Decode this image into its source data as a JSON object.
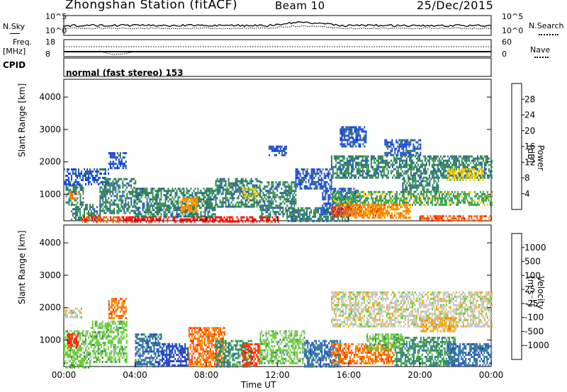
{
  "header": {
    "station": "Zhongshan Station (fitACF)",
    "beam": "Beam 10",
    "date": "25/Dec/2015"
  },
  "ops": {
    "nsky_label": "N.Sky",
    "nsky_ticks": [
      "10^5",
      "10^0"
    ],
    "nsearch_label": "N.Search",
    "nsearch_ticks": [
      "10^5",
      "10^0"
    ],
    "freq_label": "Freq.",
    "freq_unit": "[MHz]",
    "freq_ticks": [
      "18",
      "8"
    ],
    "nave_label": "Nave",
    "nave_ticks": [
      "60",
      "0"
    ],
    "cpid_label": "CPID",
    "cpid_value": "normal (fast stereo) 153"
  },
  "chart_data": [
    {
      "type": "heatmap",
      "name": "power",
      "ylabel": "Slant Range [km]",
      "yticks": [
        "1000",
        "2000",
        "3000",
        "4000"
      ],
      "ylim": [
        180,
        4550
      ],
      "colorbar_label": "Power [dB]",
      "colorbar_ticks": [
        "28",
        "24",
        "20",
        "16",
        "12",
        "8",
        "4"
      ],
      "colorbar_colors": [
        "#ff0000",
        "#ff5500",
        "#ff8c00",
        "#ffcc00",
        "#3aa64a",
        "#2e7d5a",
        "#2050c8",
        "#0030ff"
      ],
      "cells": [
        {
          "t0": 0.1,
          "t1": 1.1,
          "r0": 700,
          "r1": 1300,
          "level": 5
        },
        {
          "t0": 0.3,
          "t1": 0.9,
          "r0": 850,
          "r1": 1100,
          "level": 2
        },
        {
          "t0": 0.0,
          "t1": 2.5,
          "r0": 1300,
          "r1": 1800,
          "level": 6
        },
        {
          "t0": 0.4,
          "t1": 2.0,
          "r0": 180,
          "r1": 700,
          "level": 5
        },
        {
          "t0": 2.0,
          "t1": 4.0,
          "r0": 400,
          "r1": 1500,
          "level": 5
        },
        {
          "t0": 2.5,
          "t1": 3.5,
          "r0": 1800,
          "r1": 2300,
          "level": 6
        },
        {
          "t0": 1.0,
          "t1": 3.0,
          "r0": 180,
          "r1": 320,
          "level": 1
        },
        {
          "t0": 3.0,
          "t1": 12.0,
          "r0": 180,
          "r1": 320,
          "level": 0
        },
        {
          "t0": 4.0,
          "t1": 8.5,
          "r0": 300,
          "r1": 1200,
          "level": 5
        },
        {
          "t0": 6.5,
          "t1": 7.5,
          "r0": 500,
          "r1": 900,
          "level": 2
        },
        {
          "t0": 8.5,
          "t1": 11.0,
          "r0": 600,
          "r1": 1500,
          "level": 5
        },
        {
          "t0": 10.0,
          "t1": 11.0,
          "r0": 900,
          "r1": 1200,
          "level": 3
        },
        {
          "t0": 11.0,
          "t1": 13.0,
          "r0": 300,
          "r1": 1400,
          "level": 5
        },
        {
          "t0": 13.0,
          "t1": 15.0,
          "r0": 1200,
          "r1": 1800,
          "level": 6
        },
        {
          "t0": 11.5,
          "t1": 12.5,
          "r0": 2200,
          "r1": 2500,
          "level": 6
        },
        {
          "t0": 12.5,
          "t1": 16.0,
          "r0": 180,
          "r1": 600,
          "level": 5
        },
        {
          "t0": 14.5,
          "t1": 16.5,
          "r0": 400,
          "r1": 1200,
          "level": 6
        },
        {
          "t0": 15.0,
          "t1": 18.0,
          "r0": 350,
          "r1": 700,
          "level": 1
        },
        {
          "t0": 15.0,
          "t1": 24.0,
          "r0": 700,
          "r1": 1100,
          "level": 4
        },
        {
          "t0": 16.0,
          "t1": 19.5,
          "r0": 300,
          "r1": 700,
          "level": 2
        },
        {
          "t0": 18.0,
          "t1": 20.0,
          "r0": 2200,
          "r1": 2700,
          "level": 6
        },
        {
          "t0": 15.0,
          "t1": 24.0,
          "r0": 1500,
          "r1": 2200,
          "level": 5
        },
        {
          "t0": 21.5,
          "t1": 23.5,
          "r0": 1450,
          "r1": 1800,
          "level": 3
        },
        {
          "t0": 20.0,
          "t1": 24.0,
          "r0": 180,
          "r1": 350,
          "level": 1
        },
        {
          "t0": 15.5,
          "t1": 17.0,
          "r0": 2500,
          "r1": 3100,
          "level": 6
        },
        {
          "t0": 19.0,
          "t1": 21.0,
          "r0": 1100,
          "r1": 1500,
          "level": 5
        }
      ]
    },
    {
      "type": "heatmap",
      "name": "velocity",
      "ylabel": "Slant Range [km]",
      "yticks": [
        "1000",
        "2000",
        "3000",
        "4000"
      ],
      "ylim": [
        180,
        4550
      ],
      "xlabel": "Time UT",
      "xticks": [
        "00:00",
        "04:00",
        "08:00",
        "12:00",
        "16:00",
        "20:00",
        "00:00"
      ],
      "xlim": [
        0,
        24
      ],
      "colorbar_label": "Velocity [m s⁻¹]",
      "colorbar_ticks": [
        "1000",
        "500",
        "100",
        "25",
        "-25",
        "-100",
        "-500",
        "-1000"
      ],
      "colorbar_colors": [
        "#2040c0",
        "#2e6fae",
        "#2e8b57",
        "#66cc33",
        "#c8c8c0",
        "#ffa500",
        "#ff7000",
        "#ff3000",
        "#ff0000"
      ],
      "cells": [
        {
          "t0": 0.0,
          "t1": 1.5,
          "r0": 180,
          "r1": 1300,
          "level": 3
        },
        {
          "t0": 0.2,
          "t1": 0.8,
          "r0": 800,
          "r1": 1200,
          "level": 7
        },
        {
          "t0": 1.5,
          "t1": 3.5,
          "r0": 300,
          "r1": 1600,
          "level": 3
        },
        {
          "t0": 2.5,
          "t1": 3.5,
          "r0": 1700,
          "r1": 2300,
          "level": 6
        },
        {
          "t0": 4.0,
          "t1": 5.5,
          "r0": 180,
          "r1": 1200,
          "level": 1
        },
        {
          "t0": 5.5,
          "t1": 7.0,
          "r0": 180,
          "r1": 900,
          "level": 0
        },
        {
          "t0": 7.0,
          "t1": 9.0,
          "r0": 200,
          "r1": 1400,
          "level": 6
        },
        {
          "t0": 8.5,
          "t1": 10.5,
          "r0": 200,
          "r1": 1000,
          "level": 2
        },
        {
          "t0": 10.0,
          "t1": 11.0,
          "r0": 200,
          "r1": 900,
          "level": 7
        },
        {
          "t0": 11.0,
          "t1": 13.5,
          "r0": 300,
          "r1": 1300,
          "level": 3
        },
        {
          "t0": 13.5,
          "t1": 15.5,
          "r0": 200,
          "r1": 1000,
          "level": 1
        },
        {
          "t0": 15.0,
          "t1": 18.5,
          "r0": 300,
          "r1": 900,
          "level": 6
        },
        {
          "t0": 15.0,
          "t1": 24.0,
          "r0": 1400,
          "r1": 2500,
          "level": 4
        },
        {
          "t0": 18.5,
          "t1": 22.0,
          "r0": 200,
          "r1": 1100,
          "level": 2
        },
        {
          "t0": 21.5,
          "t1": 24.0,
          "r0": 200,
          "r1": 900,
          "level": 1
        },
        {
          "t0": 17.0,
          "t1": 19.0,
          "r0": 700,
          "r1": 1200,
          "level": 3
        },
        {
          "t0": 20.0,
          "t1": 22.0,
          "r0": 1300,
          "r1": 1700,
          "level": 5
        },
        {
          "t0": 0.0,
          "t1": 1.0,
          "r0": 1700,
          "r1": 2000,
          "level": 4
        }
      ]
    }
  ]
}
